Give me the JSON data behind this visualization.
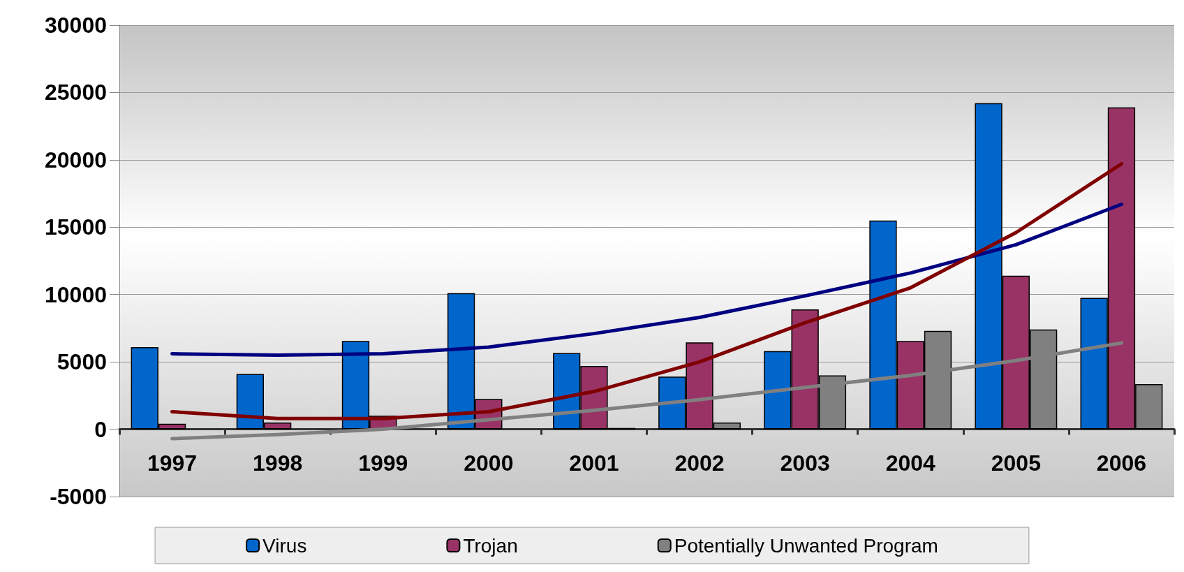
{
  "chart_data": {
    "type": "bar",
    "categories": [
      "1997",
      "1998",
      "1999",
      "2000",
      "2001",
      "2002",
      "2003",
      "2004",
      "2005",
      "2006"
    ],
    "series": [
      {
        "name": "Virus",
        "color": "#0066cc",
        "values": [
          6100,
          4100,
          6550,
          10100,
          5650,
          3900,
          5800,
          15500,
          24200,
          9750
        ]
      },
      {
        "name": "Trojan",
        "color": "#993366",
        "values": [
          400,
          500,
          1000,
          2250,
          4700,
          6450,
          8900,
          6550,
          11400,
          23900
        ]
      },
      {
        "name": "Potentially Unwanted Program",
        "color": "#808080",
        "values": [
          null,
          null,
          null,
          null,
          100,
          500,
          4000,
          7300,
          7400,
          3350
        ]
      },
      {
        "type": "line",
        "color": "#000080",
        "values": [
          5600,
          5500,
          5600,
          6100,
          7100,
          8300,
          9900,
          11600,
          13700,
          16700
        ]
      },
      {
        "type": "line",
        "color": "#800000",
        "values": [
          1300,
          800,
          800,
          1300,
          2800,
          5000,
          7900,
          10500,
          14600,
          19700
        ]
      },
      {
        "type": "line",
        "color": "#808080",
        "values": [
          -700,
          -400,
          0,
          700,
          1400,
          2200,
          3100,
          4000,
          5100,
          6400
        ]
      }
    ],
    "ylim": [
      -5000,
      30000
    ],
    "yticks": [
      -5000,
      0,
      5000,
      10000,
      15000,
      20000,
      25000,
      30000
    ],
    "grid": "y",
    "legend": "bottom",
    "marker": "none"
  }
}
